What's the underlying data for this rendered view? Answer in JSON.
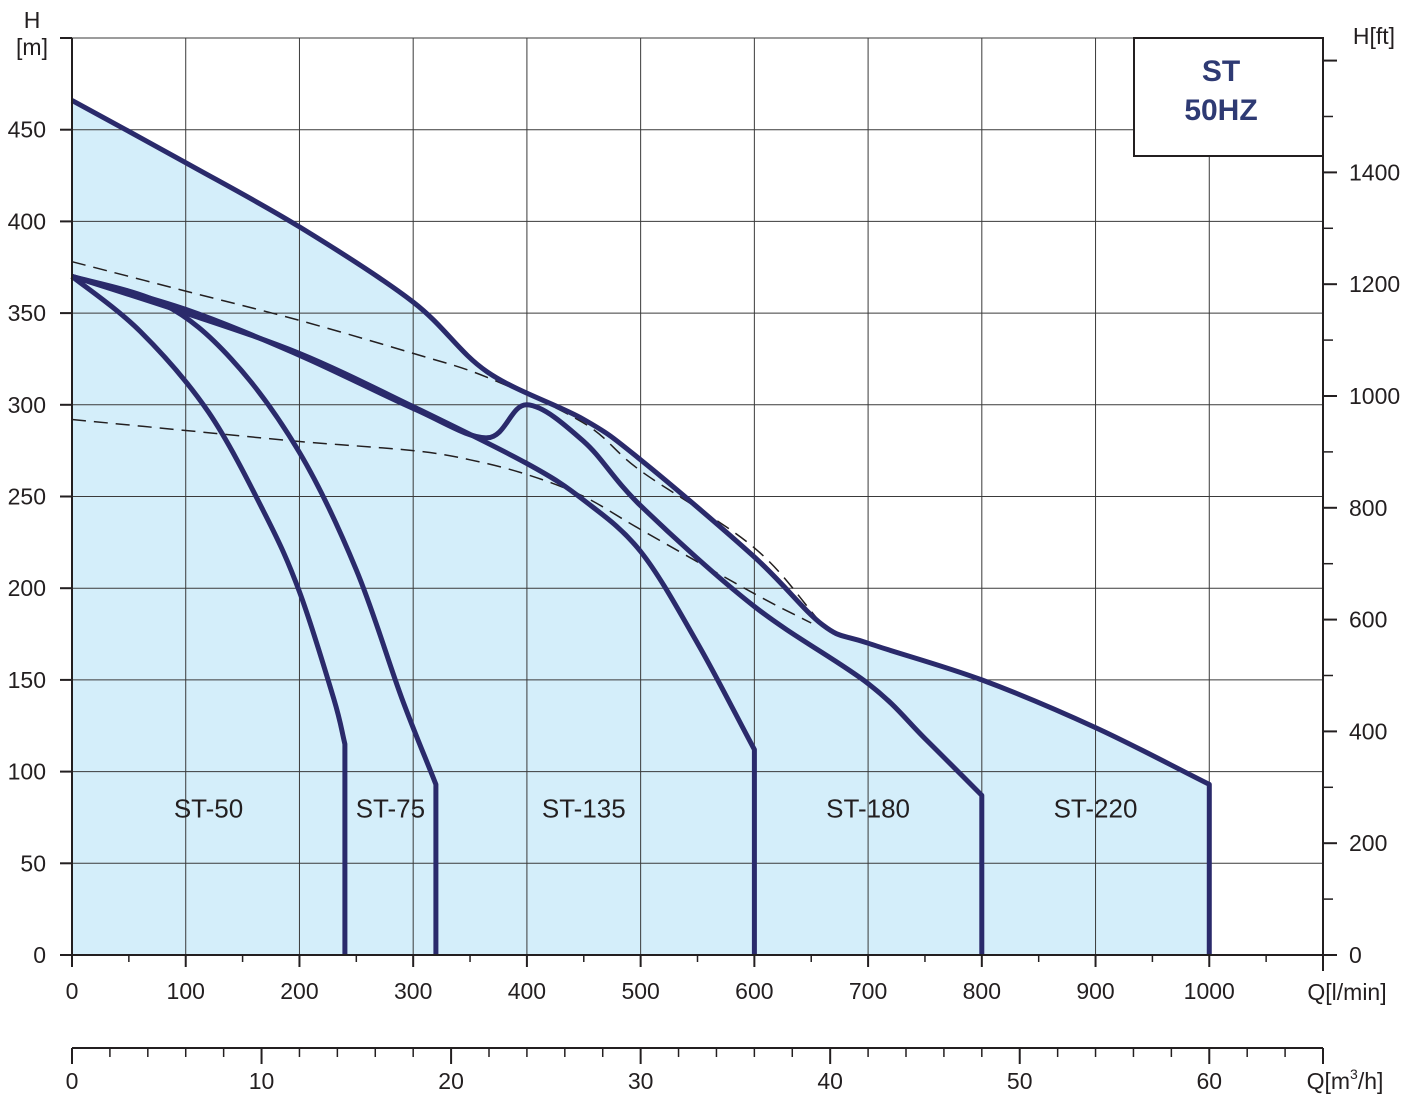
{
  "chart_data": {
    "type": "line",
    "title": "ST",
    "subtitle": "50HZ",
    "x_axis": {
      "label": "Q[l/min]",
      "range": [
        0,
        1100
      ],
      "ticks": [
        "0",
        "100",
        "200",
        "300",
        "400",
        "500",
        "600",
        "700",
        "800",
        "900",
        "1000"
      ]
    },
    "x2_axis": {
      "label_prefix": "Q[m",
      "label_sup": "3",
      "label_suffix": "/h]",
      "range": [
        0,
        66
      ],
      "ticks": [
        "0",
        "10",
        "20",
        "30",
        "40",
        "50",
        "60"
      ]
    },
    "y_axis": {
      "label_top": "H",
      "label_unit": "[m]",
      "range": [
        0,
        500
      ],
      "ticks": [
        "0",
        "50",
        "100",
        "150",
        "200",
        "250",
        "300",
        "350",
        "400",
        "450"
      ]
    },
    "y2_axis": {
      "label": "H[ft]",
      "range": [
        0,
        1640.4
      ],
      "ticks": [
        "0",
        "200",
        "400",
        "600",
        "800",
        "1000",
        "1200",
        "1400"
      ]
    },
    "grid": true,
    "legend": "none",
    "colors": {
      "curve": "#2a2a6b",
      "fill": "#d4eefa",
      "grid": "#3a3a3a",
      "title": "#2e3a73"
    },
    "envelope": [
      [
        0,
        466
      ],
      [
        100,
        432
      ],
      [
        200,
        397
      ],
      [
        300,
        356
      ],
      [
        365,
        318
      ],
      [
        450,
        292
      ],
      [
        500,
        270
      ],
      [
        600,
        217
      ],
      [
        660,
        180
      ],
      [
        700,
        170
      ],
      [
        800,
        150
      ],
      [
        900,
        124
      ],
      [
        1000,
        93
      ],
      [
        1000,
        0
      ],
      [
        0,
        0
      ]
    ],
    "series": [
      {
        "label": "ST-50",
        "label_pos": [
          120,
          75
        ],
        "points": [
          [
            0,
            370
          ],
          [
            60,
            340
          ],
          [
            120,
            296
          ],
          [
            170,
            240
          ],
          [
            200,
            198
          ],
          [
            230,
            140
          ],
          [
            240,
            115
          ],
          [
            240,
            0
          ]
        ]
      },
      {
        "label": "ST-75",
        "label_pos": [
          280,
          75
        ],
        "points": [
          [
            0,
            370
          ],
          [
            80,
            355
          ],
          [
            140,
            325
          ],
          [
            200,
            274
          ],
          [
            250,
            210
          ],
          [
            290,
            140
          ],
          [
            320,
            93
          ],
          [
            320,
            0
          ]
        ]
      },
      {
        "label": "ST-135",
        "label_pos": [
          450,
          75
        ],
        "points": [
          [
            0,
            370
          ],
          [
            100,
            350
          ],
          [
            200,
            328
          ],
          [
            300,
            299
          ],
          [
            400,
            268
          ],
          [
            450,
            248
          ],
          [
            500,
            220
          ],
          [
            550,
            170
          ],
          [
            600,
            112
          ],
          [
            600,
            0
          ]
        ]
      },
      {
        "label": "ST-180",
        "label_pos": [
          700,
          75
        ],
        "points": [
          [
            0,
            370
          ],
          [
            100,
            352
          ],
          [
            200,
            327
          ],
          [
            300,
            298
          ],
          [
            365,
            282
          ],
          [
            400,
            300
          ],
          [
            450,
            280
          ],
          [
            500,
            245
          ],
          [
            600,
            190
          ],
          [
            700,
            148
          ],
          [
            750,
            118
          ],
          [
            800,
            87
          ],
          [
            800,
            0
          ]
        ]
      },
      {
        "label": "ST-220",
        "label_pos": [
          900,
          75
        ],
        "points": []
      }
    ],
    "dashed_lines": [
      {
        "points": [
          [
            0,
            378
          ],
          [
            100,
            362
          ],
          [
            200,
            346
          ],
          [
            300,
            328
          ],
          [
            365,
            315
          ],
          [
            450,
            290
          ],
          [
            500,
            264
          ],
          [
            600,
            222
          ],
          [
            660,
            180
          ]
        ]
      },
      {
        "points": [
          [
            0,
            292
          ],
          [
            100,
            286
          ],
          [
            200,
            280
          ],
          [
            300,
            275
          ],
          [
            350,
            270
          ],
          [
            400,
            262
          ],
          [
            450,
            250
          ],
          [
            500,
            232
          ],
          [
            600,
            197
          ],
          [
            650,
            181
          ]
        ]
      }
    ]
  }
}
